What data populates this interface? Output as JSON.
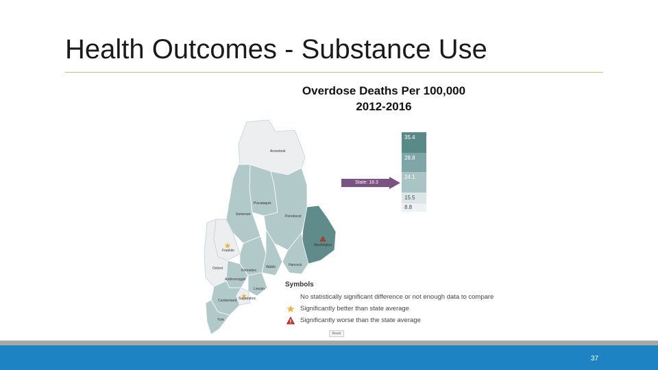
{
  "slide": {
    "title": "Health Outcomes - Substance Use",
    "page_number": "37"
  },
  "map": {
    "heading_line1": "Overdose Deaths Per 100,000",
    "heading_line2": "2012-2016",
    "counties": {
      "aroostook": "Aroostook",
      "piscataquis": "Piscataquis",
      "somerset": "Somerset",
      "penobscot": "Penobscot",
      "washington": "Washington",
      "hancock": "Hancock",
      "waldo": "Waldo",
      "franklin": "Franklin",
      "oxford": "Oxford",
      "kennebec": "Kennebec",
      "androscoggin": "Androscoggin",
      "lincoln": "Lincoln",
      "cumberland": "Cumberland",
      "sagadahoc": "Sagadahoc",
      "york": "York"
    },
    "scale": [
      {
        "label": "35.4",
        "color": "#5a8a88"
      },
      {
        "label": "28.8",
        "color": "#7fa6a6"
      },
      {
        "label": "24.1",
        "color": "#a9c4c5"
      },
      {
        "label": "15.5",
        "color": "#dde6e7"
      },
      {
        "label": "8.8",
        "color": "#eef1f2"
      }
    ],
    "state_marker": "State: 18.3",
    "zoom_label": "Reset"
  },
  "legend": {
    "title": "Symbols",
    "items": [
      {
        "icon": "blank-icon",
        "text": "No statistically significant difference or not enough data to compare"
      },
      {
        "icon": "star-icon",
        "text": "Significantly better than state average"
      },
      {
        "icon": "warning-triangle-icon",
        "text": "Significantly worse than the state average"
      }
    ]
  },
  "colors": {
    "footer_bar": "#1d83c2",
    "title_rule": "#b7c48a",
    "worse_county": "#5f8c8a",
    "mid_county": "#b2c9ca",
    "light_county": "#eceeef",
    "state_arrow": "#7a5283"
  }
}
